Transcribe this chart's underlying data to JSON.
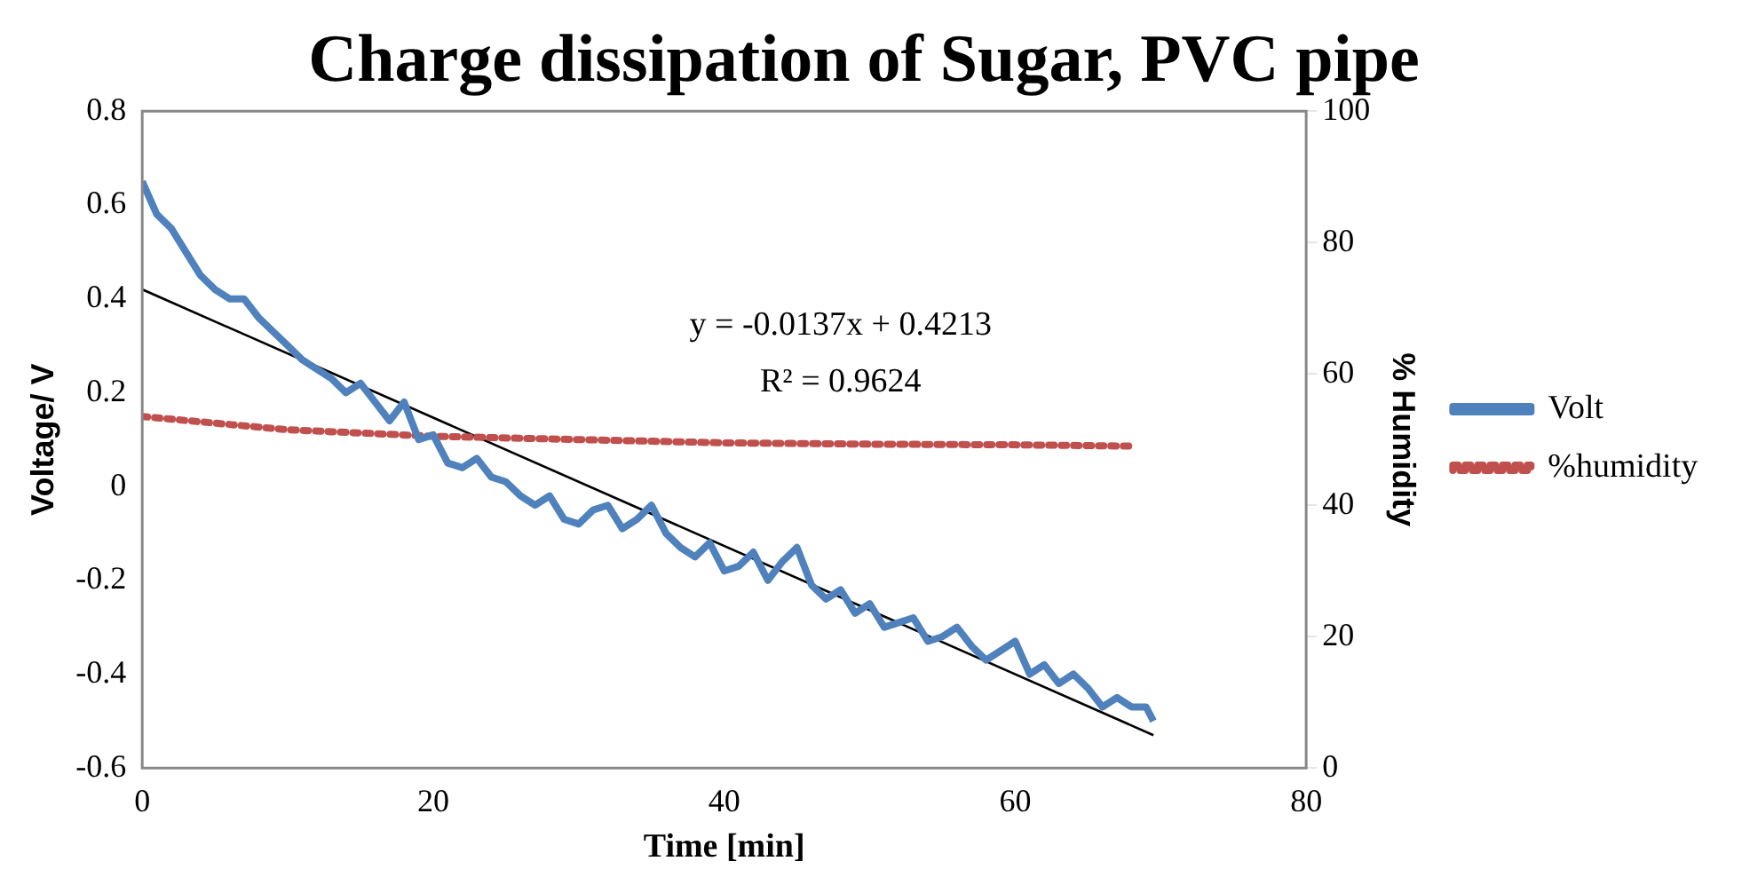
{
  "chart_data": {
    "type": "line",
    "title": "Charge dissipation of Sugar, PVC pipe",
    "xlabel": "Time [min]",
    "ylabel": "Voltage/ V",
    "y2label": "% Humidity",
    "xlim": [
      0,
      80
    ],
    "xticks": [
      0,
      20,
      40,
      60,
      80
    ],
    "ylim": [
      -0.6,
      0.8
    ],
    "yticks": [
      -0.6,
      -0.4,
      -0.2,
      0,
      0.2,
      0.4,
      0.6,
      0.8
    ],
    "y2lim": [
      0,
      100
    ],
    "y2ticks": [
      0,
      20,
      40,
      60,
      80,
      100
    ],
    "grid": false,
    "legend": "right",
    "marker": "none",
    "annotations": [
      "y = -0.0137x + 0.4213",
      "R² = 0.9624"
    ],
    "series": [
      {
        "name": "Volt",
        "color": "#4f81bd",
        "line_style": "solid",
        "x": [
          0,
          1,
          2,
          3,
          4,
          5,
          6,
          7,
          8,
          9,
          10,
          11,
          12,
          13,
          14,
          15,
          16,
          17,
          18,
          19,
          20,
          21,
          22,
          23,
          24,
          25,
          26,
          27,
          28,
          29,
          30,
          31,
          32,
          33,
          34,
          35,
          36,
          37,
          38,
          39,
          40,
          41,
          42,
          43,
          44,
          45,
          46,
          47,
          48,
          49,
          50,
          51,
          52,
          53,
          54,
          55,
          56,
          57,
          58,
          59,
          60,
          61,
          62,
          63,
          64,
          65,
          66,
          67,
          68,
          69,
          69.5
        ],
        "values": [
          0.65,
          0.58,
          0.55,
          0.5,
          0.45,
          0.42,
          0.4,
          0.4,
          0.36,
          0.33,
          0.3,
          0.27,
          0.25,
          0.23,
          0.2,
          0.22,
          0.18,
          0.14,
          0.18,
          0.1,
          0.11,
          0.05,
          0.04,
          0.06,
          0.02,
          0.01,
          -0.02,
          -0.04,
          -0.02,
          -0.07,
          -0.08,
          -0.05,
          -0.04,
          -0.09,
          -0.07,
          -0.04,
          -0.1,
          -0.13,
          -0.15,
          -0.12,
          -0.18,
          -0.17,
          -0.14,
          -0.2,
          -0.16,
          -0.13,
          -0.21,
          -0.24,
          -0.22,
          -0.27,
          -0.25,
          -0.3,
          -0.29,
          -0.28,
          -0.33,
          -0.32,
          -0.3,
          -0.34,
          -0.37,
          -0.35,
          -0.33,
          -0.4,
          -0.38,
          -0.42,
          -0.4,
          -0.43,
          -0.47,
          -0.45,
          -0.47,
          -0.47,
          -0.5
        ]
      },
      {
        "name": "%humidity",
        "color": "#c0504d",
        "line_style": "dotted",
        "axis": "y2",
        "x": [
          0,
          5,
          10,
          15,
          20,
          30,
          40,
          50,
          60,
          68
        ],
        "values": [
          53.5,
          52.5,
          51.5,
          51,
          50.5,
          50,
          49.5,
          49.3,
          49.2,
          49
        ]
      },
      {
        "type": "line",
        "color": "#000000",
        "line_style": "solid",
        "x": [
          0,
          69.5
        ],
        "values": [
          0.42,
          -0.53
        ]
      }
    ]
  }
}
